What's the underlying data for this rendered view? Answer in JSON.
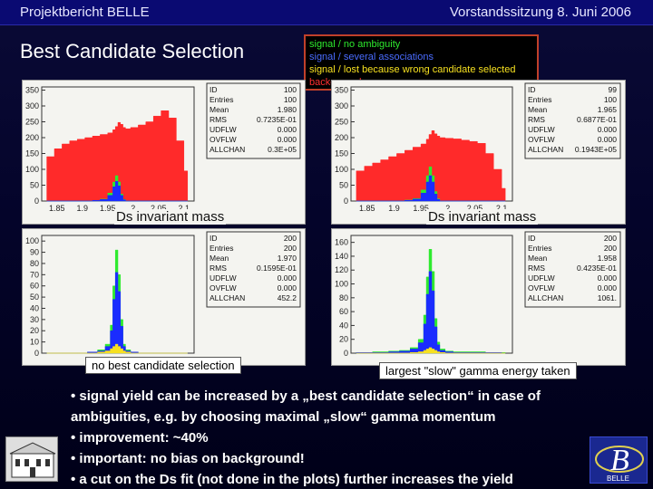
{
  "header": {
    "left": "Projektbericht BELLE",
    "right": "Vorstandssitzung 8. Juni 2006"
  },
  "title": "Best Candidate Selection",
  "legend": {
    "items": [
      {
        "label": "signal / no ambiguity",
        "color": "#2eea2e"
      },
      {
        "label": "signal / several associations",
        "color": "#4a6cff"
      },
      {
        "label": "signal / lost because wrong candidate selected",
        "color": "#f6e020"
      },
      {
        "label": "background",
        "color": "#ff3030"
      }
    ]
  },
  "labels": {
    "axis_left": "Ds invariant mass",
    "axis_right": "Ds invariant mass",
    "callout_left": "no best candidate selection",
    "callout_right": "largest \"slow\" gamma energy taken"
  },
  "bullets": [
    "• signal yield can be increased by a „best candidate selection“ in case of ambiguities, e.g. by choosing maximal „slow“ gamma momentum",
    "• improvement: ~40%",
    "• important: no bias on background!",
    "• a cut on the Ds fit (not done in the plots) further increases the yield"
  ],
  "colors": {
    "background": "#ff2a2a",
    "signal_green": "#2eea2e",
    "signal_blue": "#1a2cff",
    "signal_yellow": "#f6e020"
  },
  "chart_data": [
    {
      "type": "area",
      "panel": "top-left",
      "xlim": [
        1.82,
        2.12
      ],
      "ylim": [
        0,
        360
      ],
      "x_ticks": [
        "1.85",
        "1.9",
        "1.95",
        "2",
        "2.05",
        "2.1"
      ],
      "y_ticks": [
        "0",
        "50",
        "100",
        "150",
        "200",
        "250",
        "300",
        "350"
      ],
      "stats": [
        [
          "ID",
          "100"
        ],
        [
          "Entries",
          "100"
        ],
        [
          "Mean",
          "1.980"
        ],
        [
          "RMS",
          "0.7235E-01"
        ],
        [
          "UDFLW",
          "0.000"
        ],
        [
          "OVFLW",
          "0.000"
        ],
        [
          "ALLCHAN",
          "0.3E+05"
        ]
      ],
      "x": [
        1.83,
        1.845,
        1.86,
        1.875,
        1.89,
        1.905,
        1.92,
        1.935,
        1.95,
        1.96,
        1.965,
        1.97,
        1.975,
        1.98,
        1.985,
        1.995,
        2.01,
        2.025,
        2.04,
        2.055,
        2.07,
        2.085,
        2.1
      ],
      "series": [
        {
          "name": "background",
          "values": [
            140,
            165,
            180,
            190,
            195,
            200,
            205,
            210,
            215,
            225,
            235,
            248,
            242,
            232,
            228,
            232,
            240,
            250,
            268,
            285,
            262,
            190,
            95
          ]
        },
        {
          "name": "signal_green",
          "values": [
            0,
            0,
            0,
            0,
            0,
            0,
            2,
            6,
            25,
            60,
            80,
            60,
            22,
            5,
            0,
            0,
            0,
            0,
            0,
            0,
            0,
            0,
            0
          ]
        },
        {
          "name": "signal_blue",
          "values": [
            0,
            0,
            0,
            0,
            0,
            0,
            2,
            5,
            18,
            45,
            62,
            48,
            18,
            4,
            0,
            0,
            0,
            0,
            0,
            0,
            0,
            0,
            0
          ]
        }
      ]
    },
    {
      "type": "area",
      "panel": "top-right",
      "xlim": [
        1.82,
        2.12
      ],
      "ylim": [
        0,
        360
      ],
      "x_ticks": [
        "1.85",
        "1.9",
        "1.95",
        "2",
        "2.05",
        "2.1"
      ],
      "y_ticks": [
        "0",
        "50",
        "100",
        "150",
        "200",
        "250",
        "300",
        "350"
      ],
      "stats": [
        [
          "ID",
          "99"
        ],
        [
          "Entries",
          "100"
        ],
        [
          "Mean",
          "1.965"
        ],
        [
          "RMS",
          "0.6877E-01"
        ],
        [
          "UDFLW",
          "0.000"
        ],
        [
          "OVFLW",
          "0.000"
        ],
        [
          "ALLCHAN",
          "0.1943E+05"
        ]
      ],
      "x": [
        1.83,
        1.845,
        1.86,
        1.875,
        1.89,
        1.905,
        1.92,
        1.935,
        1.95,
        1.96,
        1.965,
        1.97,
        1.975,
        1.98,
        1.985,
        1.995,
        2.01,
        2.025,
        2.04,
        2.055,
        2.07,
        2.085,
        2.1
      ],
      "series": [
        {
          "name": "background",
          "values": [
            95,
            110,
            120,
            130,
            140,
            150,
            160,
            170,
            180,
            195,
            210,
            222,
            212,
            205,
            200,
            198,
            196,
            192,
            188,
            182,
            150,
            100,
            40
          ]
        },
        {
          "name": "signal_green",
          "values": [
            0,
            0,
            0,
            0,
            0,
            0,
            3,
            8,
            35,
            80,
            108,
            80,
            30,
            7,
            0,
            0,
            0,
            0,
            0,
            0,
            0,
            0,
            0
          ]
        },
        {
          "name": "signal_blue",
          "values": [
            0,
            0,
            0,
            0,
            0,
            0,
            2,
            6,
            25,
            60,
            80,
            60,
            22,
            5,
            0,
            0,
            0,
            0,
            0,
            0,
            0,
            0,
            0
          ]
        }
      ]
    },
    {
      "type": "area",
      "panel": "bottom-left",
      "xlim": [
        1.82,
        2.12
      ],
      "ylim": [
        0,
        105
      ],
      "x_ticks": [],
      "y_ticks": [
        "0",
        "10",
        "20",
        "30",
        "40",
        "50",
        "60",
        "70",
        "80",
        "90",
        "100"
      ],
      "stats": [
        [
          "ID",
          "200"
        ],
        [
          "Entries",
          "200"
        ],
        [
          "Mean",
          "1.970"
        ],
        [
          "RMS",
          "0.1595E-01"
        ],
        [
          "UDFLW",
          "0.000"
        ],
        [
          "OVFLW",
          "0.000"
        ],
        [
          "ALLCHAN",
          "452.2"
        ]
      ],
      "x": [
        1.83,
        1.86,
        1.89,
        1.91,
        1.93,
        1.945,
        1.955,
        1.96,
        1.965,
        1.97,
        1.975,
        1.98,
        1.985,
        1.995,
        2.01,
        2.04,
        2.07,
        2.1
      ],
      "series": [
        {
          "name": "signal_green",
          "values": [
            0,
            0,
            0,
            1,
            3,
            8,
            25,
            60,
            92,
            70,
            30,
            8,
            3,
            1,
            0,
            0,
            0,
            0
          ]
        },
        {
          "name": "signal_blue",
          "values": [
            0,
            0,
            0,
            1,
            2,
            6,
            20,
            48,
            72,
            55,
            24,
            6,
            2,
            1,
            0,
            0,
            0,
            0
          ]
        },
        {
          "name": "signal_yellow",
          "values": [
            0,
            0,
            0,
            0,
            1,
            2,
            4,
            6,
            8,
            6,
            4,
            2,
            1,
            0,
            0,
            0,
            0,
            0
          ]
        }
      ]
    },
    {
      "type": "area",
      "panel": "bottom-right",
      "xlim": [
        1.82,
        2.12
      ],
      "ylim": [
        0,
        170
      ],
      "x_ticks": [],
      "y_ticks": [
        "0",
        "20",
        "40",
        "60",
        "80",
        "100",
        "120",
        "140",
        "160"
      ],
      "stats": [
        [
          "ID",
          "200"
        ],
        [
          "Entries",
          "200"
        ],
        [
          "Mean",
          "1.958"
        ],
        [
          "RMS",
          "0.4235E-01"
        ],
        [
          "UDFLW",
          "0.000"
        ],
        [
          "OVFLW",
          "0.000"
        ],
        [
          "ALLCHAN",
          "1061."
        ]
      ],
      "x": [
        1.83,
        1.86,
        1.89,
        1.91,
        1.93,
        1.945,
        1.955,
        1.96,
        1.965,
        1.97,
        1.975,
        1.98,
        1.985,
        1.995,
        2.01,
        2.04,
        2.07,
        2.1
      ],
      "series": [
        {
          "name": "signal_green",
          "values": [
            1,
            2,
            3,
            4,
            8,
            20,
            55,
            110,
            150,
            118,
            50,
            16,
            6,
            3,
            2,
            2,
            1,
            1
          ]
        },
        {
          "name": "signal_blue",
          "values": [
            1,
            1,
            2,
            3,
            6,
            15,
            42,
            85,
            118,
            90,
            38,
            12,
            4,
            2,
            1,
            1,
            1,
            0
          ]
        },
        {
          "name": "signal_yellow",
          "values": [
            0,
            0,
            0,
            0,
            1,
            2,
            4,
            6,
            8,
            6,
            4,
            2,
            1,
            0,
            0,
            0,
            0,
            0
          ]
        }
      ]
    }
  ]
}
